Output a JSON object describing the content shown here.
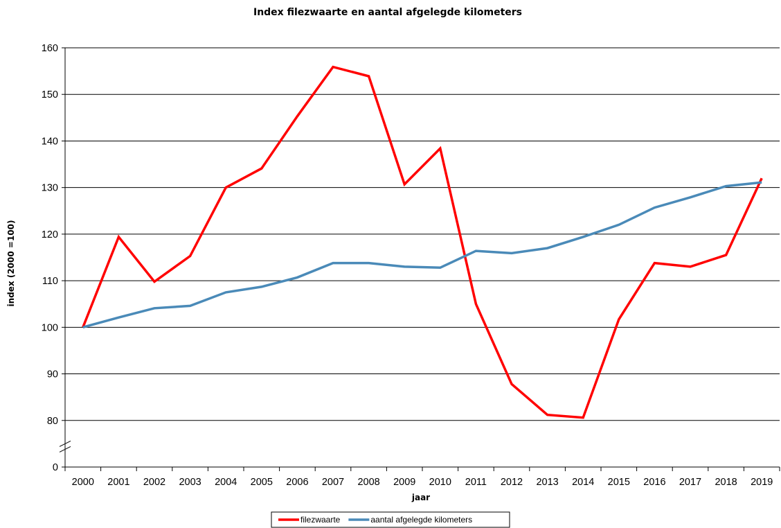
{
  "chart_data": {
    "type": "line",
    "title": "Index filezwaarte  en aantal afgelegde kilometers",
    "xlabel": "jaar",
    "ylabel": "index (2000 =100)",
    "categories": [
      "2000",
      "2001",
      "2002",
      "2003",
      "2004",
      "2005",
      "2006",
      "2007",
      "2008",
      "2009",
      "2010",
      "2011",
      "2012",
      "2013",
      "2014",
      "2015",
      "2016",
      "2017",
      "2018",
      "2019"
    ],
    "yticks": [
      "0",
      "80",
      "90",
      "100",
      "110",
      "120",
      "130",
      "140",
      "150",
      "160"
    ],
    "axis_break": true,
    "ylim": [
      70,
      160
    ],
    "grid": true,
    "legend_position": "bottom",
    "series": [
      {
        "name": "filezwaarte",
        "color": "#ff0000",
        "values": [
          100,
          119.4,
          109.8,
          115.3,
          130.0,
          134.1,
          145.3,
          155.9,
          153.9,
          130.7,
          138.4,
          105.0,
          87.8,
          81.2,
          80.6,
          101.7,
          113.8,
          113.0,
          115.5,
          132.0
        ]
      },
      {
        "name": "aantal afgelegde kilometers",
        "color": "#4a8ab8",
        "values": [
          100,
          102.1,
          104.1,
          104.6,
          107.5,
          108.7,
          110.7,
          113.8,
          113.8,
          113.0,
          112.8,
          116.4,
          115.9,
          117.0,
          119.4,
          122.0,
          125.7,
          127.9,
          130.3,
          131.1
        ]
      }
    ]
  }
}
